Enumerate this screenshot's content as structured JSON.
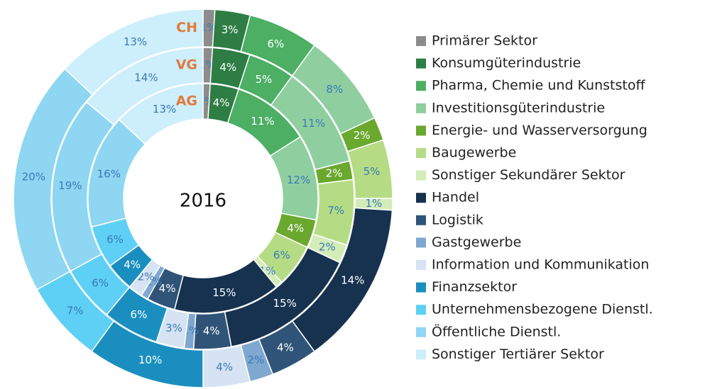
{
  "chart_data": {
    "type": "multi_donut",
    "center_label": "2016",
    "categories": [
      "Primärer Sektor",
      "Konsumgüterindustrie",
      "Pharma, Chemie und Kunststoff",
      "Investitionsgüterindustrie",
      "Energie- und Wasserversorgung",
      "Baugewerbe",
      "Sonstiger Sekundärer Sektor",
      "Handel",
      "Logistik",
      "Gastgewerbe",
      "Information und Kommunikation",
      "Finanzsektor",
      "Unternehmensbezogene Dienstl.",
      "Öffentliche Dienstl.",
      "Sonstiger Tertiärer Sektor"
    ],
    "colors": [
      "#8c8c8c",
      "#2e7d44",
      "#4caf64",
      "#8fcf9f",
      "#6aa82e",
      "#b5dc84",
      "#d3ecb8",
      "#16324f",
      "#2f5478",
      "#7fa8d0",
      "#d5e3f2",
      "#1a8fbf",
      "#5fd0f5",
      "#8ed6f2",
      "#cdeefb"
    ],
    "series": [
      {
        "name": "AG",
        "values": [
          1,
          4,
          11,
          12,
          4,
          6,
          1,
          15,
          4,
          1,
          2,
          4,
          6,
          16,
          13
        ],
        "value_labels": [
          "1%",
          "4%",
          "11%",
          "12%",
          "4%",
          "6%",
          "1%",
          "15%",
          "4%",
          "1%",
          "2%",
          "4%",
          "6%",
          "16%",
          "13%"
        ]
      },
      {
        "name": "VG",
        "values": [
          1,
          4,
          5,
          11,
          2,
          7,
          2,
          15,
          4,
          1,
          3,
          6,
          6,
          19,
          14
        ],
        "value_labels": [
          "1%",
          "4%",
          "5%",
          "11%",
          "2%",
          "7%",
          "2%",
          "15%",
          "4%",
          "1%",
          "3%",
          "6%",
          "6%",
          "19%",
          "14%"
        ]
      },
      {
        "name": "CH",
        "values": [
          1,
          3,
          6,
          8,
          2,
          5,
          1,
          14,
          4,
          2,
          4,
          10,
          7,
          20,
          13
        ],
        "value_labels": [
          "1%",
          "3%",
          "6%",
          "8%",
          "2%",
          "5%",
          "1%",
          "14%",
          "4%",
          "2%",
          "4%",
          "10%",
          "7%",
          "20%",
          "13%"
        ]
      }
    ]
  }
}
